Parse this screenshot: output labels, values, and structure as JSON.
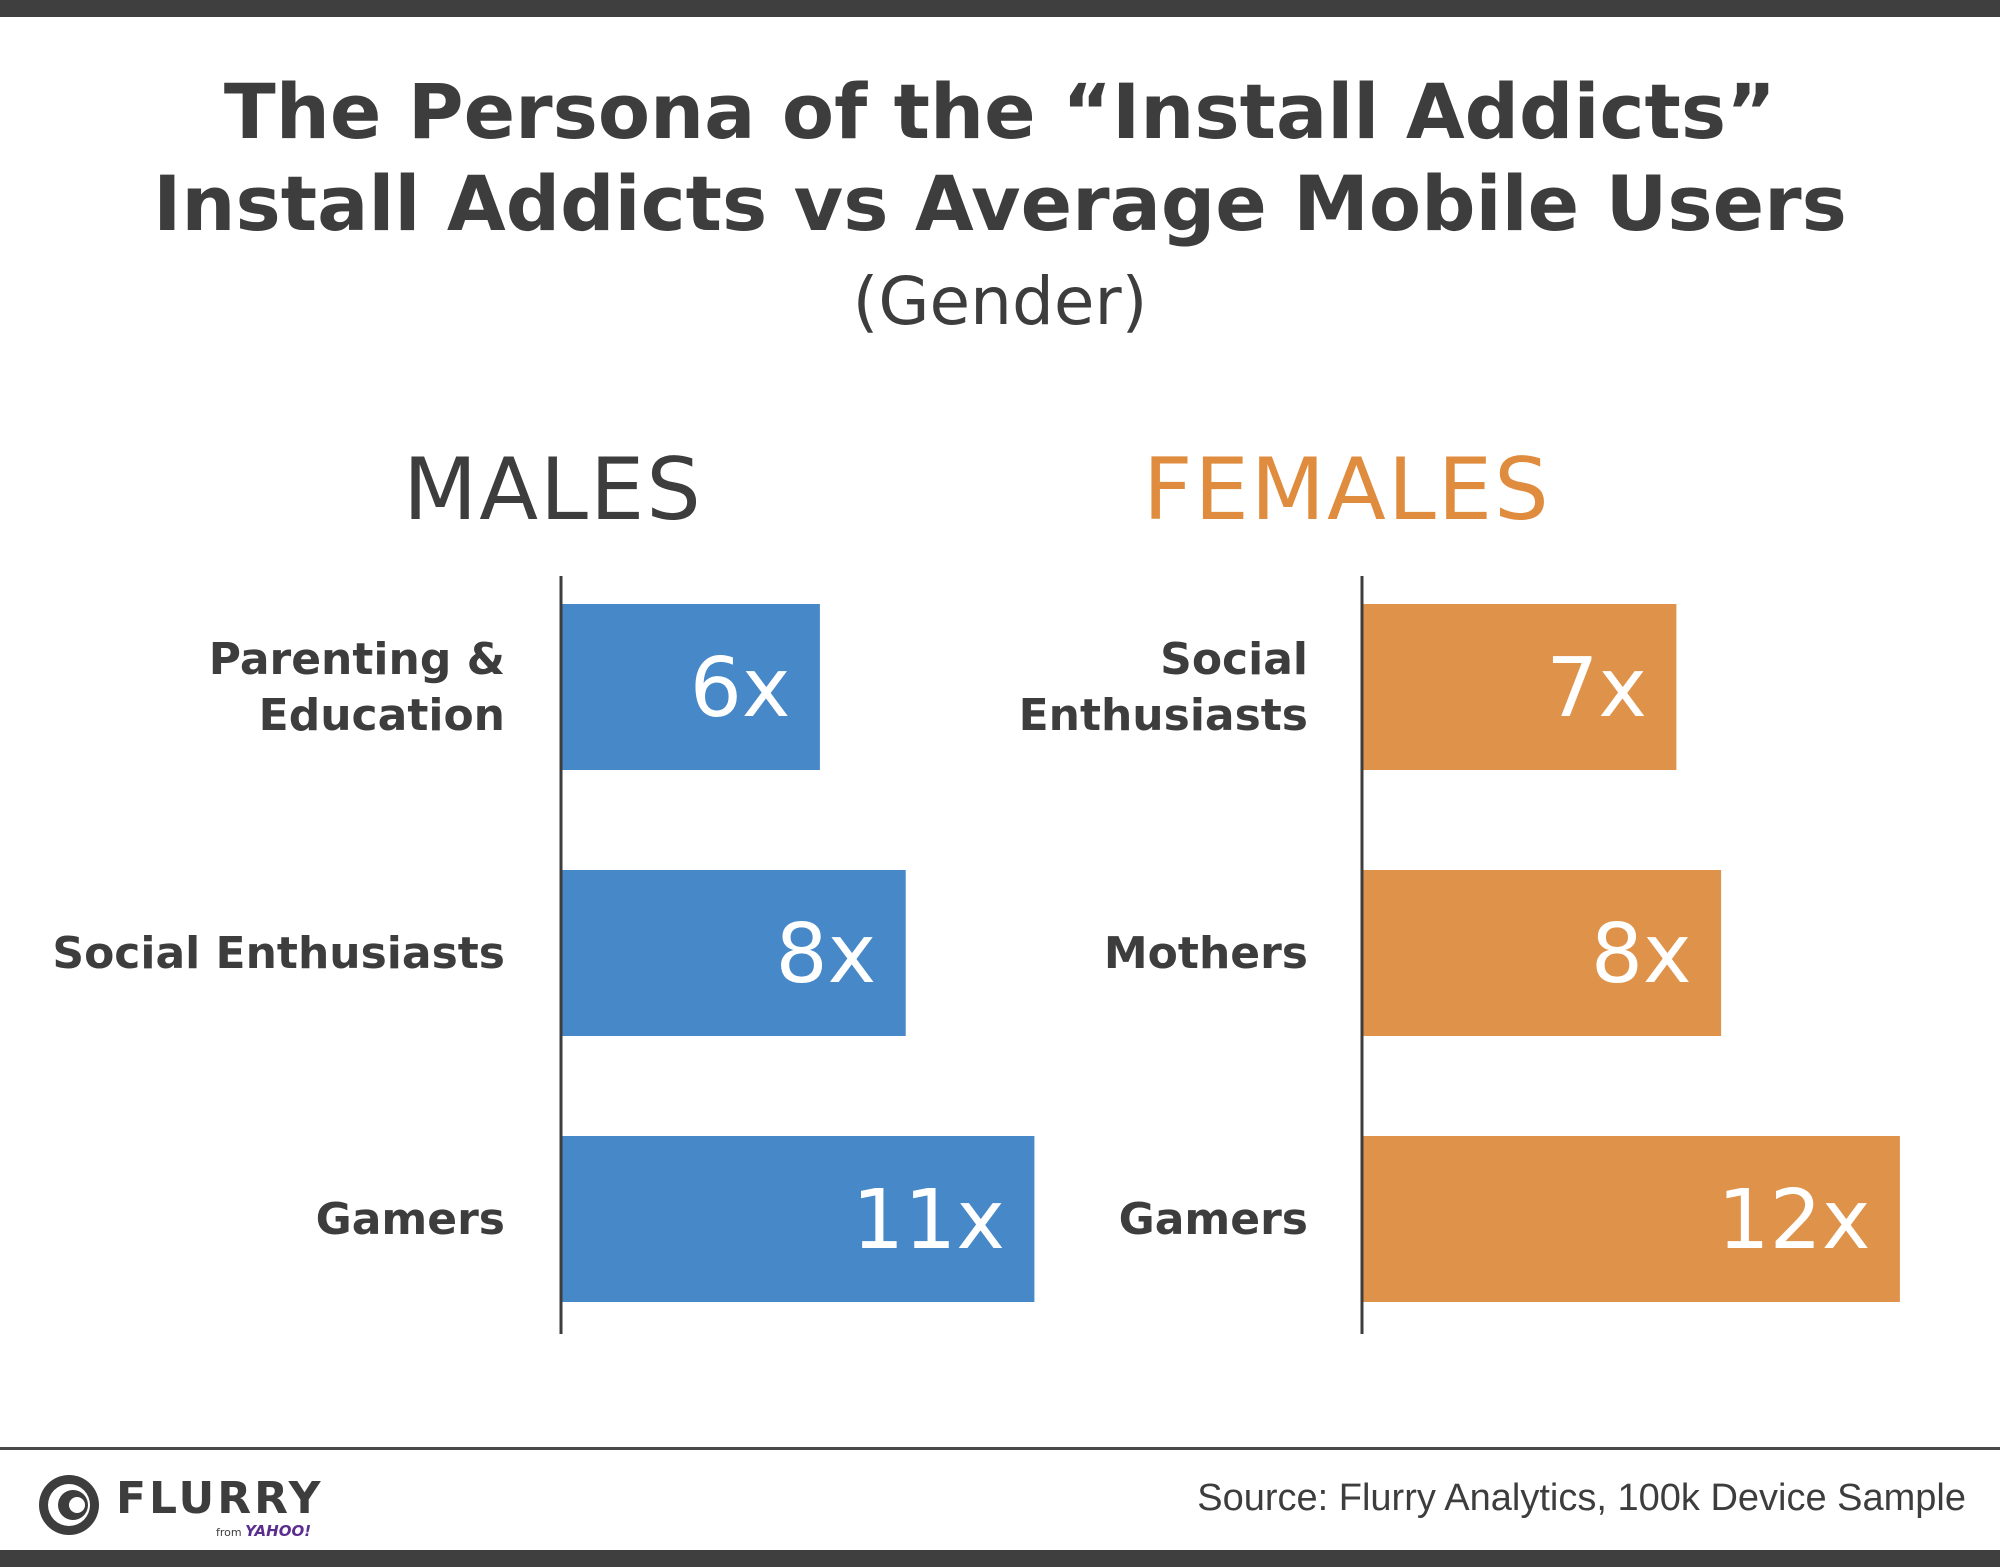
{
  "title": {
    "line1": "The Persona of the “Install Addicts”",
    "line2": "Install Addicts vs Average Mobile Users",
    "subtitle": "(Gender)"
  },
  "colors": {
    "males": "#4688c8",
    "females": "#df934a",
    "text": "#3d3d3d"
  },
  "chart_data": [
    {
      "type": "bar",
      "orientation": "horizontal",
      "title": "MALES",
      "categories": [
        [
          "Parenting &",
          "Education"
        ],
        [
          "Social Enthusiasts"
        ],
        [
          "Gamers"
        ]
      ],
      "values": [
        6,
        8,
        11
      ],
      "value_labels": [
        "6x",
        "8x",
        "11x"
      ],
      "xlim": [
        0,
        12
      ],
      "color": "#4688c8"
    },
    {
      "type": "bar",
      "orientation": "horizontal",
      "title": "FEMALES",
      "categories": [
        [
          "Social",
          "Enthusiasts"
        ],
        [
          "Mothers"
        ],
        [
          "Gamers"
        ]
      ],
      "values": [
        7,
        8,
        12
      ],
      "value_labels": [
        "7x",
        "8x",
        "12x"
      ],
      "xlim": [
        0,
        12
      ],
      "color": "#df934a"
    }
  ],
  "footer": {
    "logo_word": "FLURRY",
    "logo_from": "from",
    "logo_yahoo": "YAHOO!",
    "source": "Source: Flurry Analytics, 100k Device Sample"
  }
}
